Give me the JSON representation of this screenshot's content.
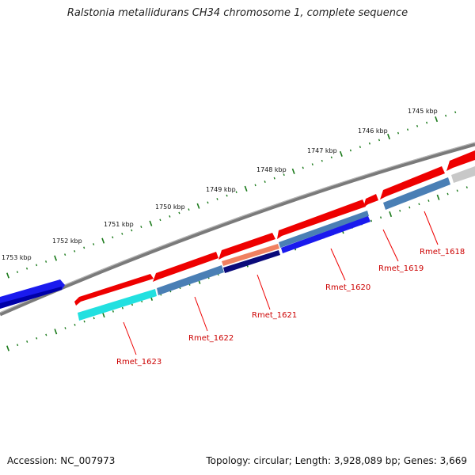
{
  "title": "Ralstonia metallidurans CH34 chromosome 1, complete sequence",
  "footer": {
    "accession": "Accession: NC_007973",
    "topology": "Topology: circular; Length: 3,928,089 bp; Genes: 3,669"
  },
  "tick_labels": [
    "1745 kbp",
    "1746 kbp",
    "1747 kbp",
    "1748 kbp",
    "1749 kbp",
    "1750 kbp",
    "1751 kbp",
    "1752 kbp",
    "1753 kbp"
  ],
  "gene_labels": [
    "Rmet_1618",
    "Rmet_1619",
    "Rmet_1620",
    "Rmet_1621",
    "Rmet_1622",
    "Rmet_1623"
  ],
  "colors": {
    "backbone": "#7a7a7a",
    "forward_gene": "#ee0000",
    "reverse_gene": "#1a1aee",
    "steelblue_feature": "#4a7fb5",
    "cyan_feature": "#22e0e0",
    "navy_feature": "#0a0a7a",
    "salmon_feature": "#f08060",
    "gray_feature": "#c8c8c8",
    "tick": "#1a7a1a",
    "label_line": "#ee0000",
    "label_text": "#cc0000"
  }
}
